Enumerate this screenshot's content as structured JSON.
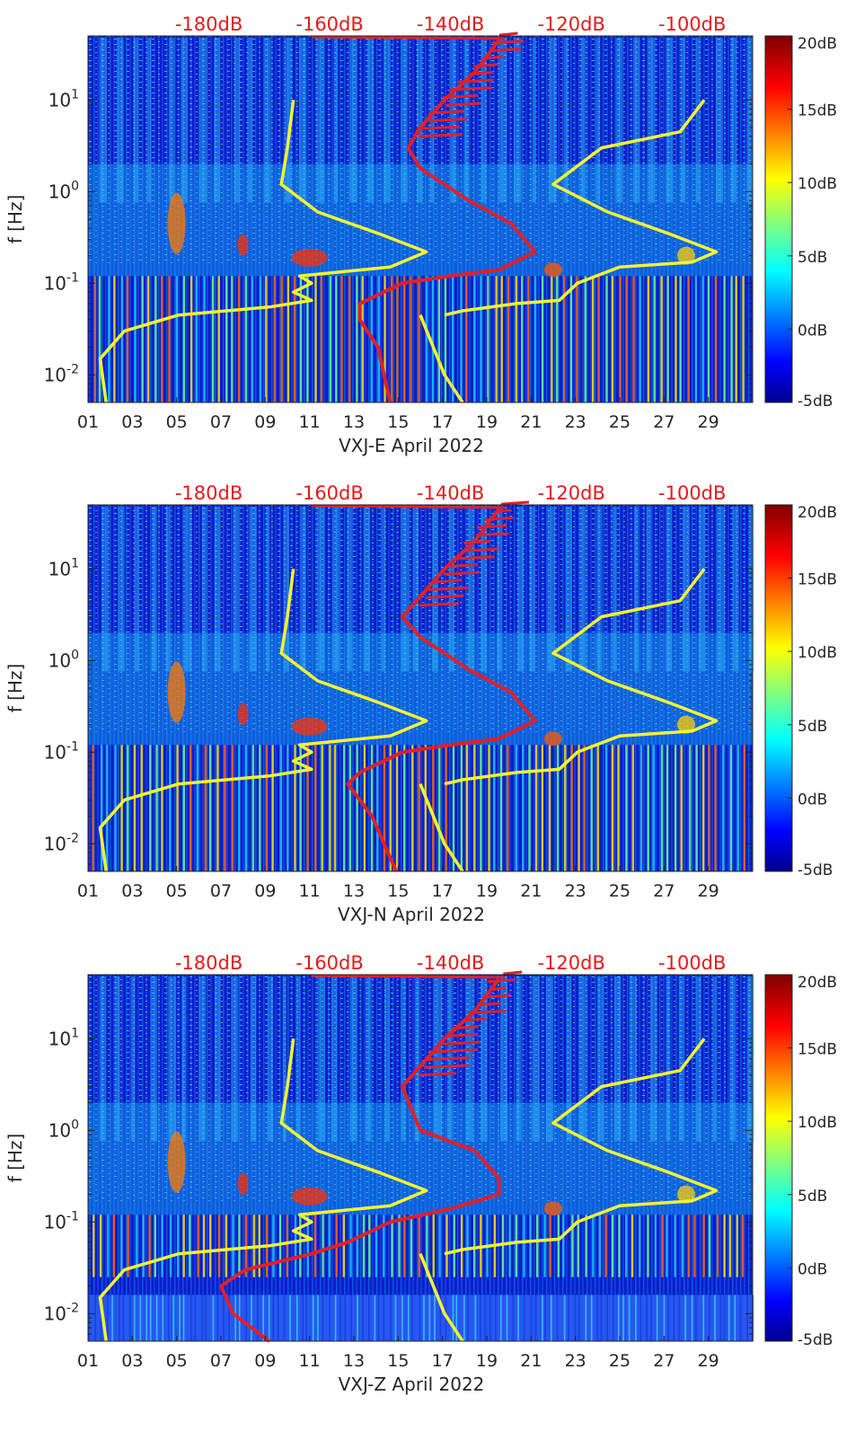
{
  "colorbar": {
    "tick_labels": [
      "20dB",
      "15dB",
      "10dB",
      "5dB",
      "0dB",
      "-5dB"
    ],
    "range": [
      -5,
      20
    ]
  },
  "top_scale": {
    "tick_labels": [
      "-180dB",
      "-160dB",
      "-140dB",
      "-120dB",
      "-100dB"
    ],
    "color": "#e41a1c"
  },
  "line_colors": {
    "model": "#f5f232",
    "psd": "#e0202a"
  },
  "chart_data": [
    {
      "type": "heatmap",
      "xlabel": "VXJ-E April 2022",
      "ylabel": "f [Hz]",
      "x_ticks": [
        "01",
        "03",
        "05",
        "07",
        "09",
        "11",
        "13",
        "15",
        "17",
        "19",
        "21",
        "23",
        "25",
        "27",
        "29"
      ],
      "y_ticks": [
        "10^1",
        "10^0",
        "10^-1",
        "10^-2"
      ],
      "ylim": [
        0.005,
        50
      ],
      "xlim": [
        1,
        31
      ],
      "yscale": "log",
      "top_axis": {
        "labels": [
          "-180dB",
          "-160dB",
          "-140dB",
          "-120dB",
          "-100dB"
        ],
        "range": [
          -200,
          -90
        ]
      },
      "series": [
        {
          "points": [
            [
              -197,
              0.005
            ],
            [
              -198,
              0.015
            ],
            [
              -194,
              0.03
            ],
            [
              -185,
              0.045
            ],
            [
              -170,
              0.055
            ],
            [
              -163,
              0.065
            ],
            [
              -166,
              0.08
            ],
            [
              -163,
              0.1
            ],
            [
              -165,
              0.12
            ],
            [
              -150,
              0.15
            ],
            [
              -144,
              0.22
            ],
            [
              -152,
              0.35
            ],
            [
              -162,
              0.6
            ],
            [
              -168,
              1.2
            ],
            [
              -167,
              3
            ],
            [
              -166,
              10
            ]
          ]
        },
        {
          "points": [
            [
              -145,
              0.045
            ],
            [
              -141,
              0.01
            ],
            [
              -138,
              0.005
            ]
          ]
        },
        {
          "points": [
            [
              -141,
              0.045
            ],
            [
              -138,
              0.05
            ],
            [
              -129,
              0.06
            ],
            [
              -122,
              0.065
            ],
            [
              -119,
              0.1
            ],
            [
              -112,
              0.15
            ],
            [
              -100,
              0.17
            ],
            [
              -96,
              0.22
            ],
            [
              -104,
              0.35
            ],
            [
              -114,
              0.6
            ],
            [
              -123,
              1.2
            ],
            [
              -115,
              3
            ],
            [
              -102,
              4.5
            ],
            [
              -98,
              10
            ]
          ]
        },
        {
          "points": [
            [
              -150,
              0.005
            ],
            [
              -152,
              0.02
            ],
            [
              -155,
              0.04
            ],
            [
              -155,
              0.06
            ],
            [
              -148,
              0.1
            ],
            [
              -140,
              0.12
            ],
            [
              -132,
              0.14
            ],
            [
              -126,
              0.22
            ],
            [
              -130,
              0.45
            ],
            [
              -137,
              0.8
            ],
            [
              -145,
              1.8
            ],
            [
              -147,
              3
            ],
            [
              -145,
              5
            ],
            [
              -141,
              10
            ],
            [
              -136,
              20
            ],
            [
              -132,
              45
            ]
          ]
        }
      ]
    },
    {
      "type": "heatmap",
      "xlabel": "VXJ-N April 2022",
      "ylabel": "f [Hz]",
      "x_ticks": [
        "01",
        "03",
        "05",
        "07",
        "09",
        "11",
        "13",
        "15",
        "17",
        "19",
        "21",
        "23",
        "25",
        "27",
        "29"
      ],
      "y_ticks": [
        "10^1",
        "10^0",
        "10^-1",
        "10^-2"
      ],
      "ylim": [
        0.005,
        50
      ],
      "xlim": [
        1,
        31
      ],
      "yscale": "log",
      "top_axis": {
        "labels": [
          "-180dB",
          "-160dB",
          "-140dB",
          "-120dB",
          "-100dB"
        ],
        "range": [
          -200,
          -90
        ]
      },
      "series": [
        {
          "points": [
            [
              -197,
              0.005
            ],
            [
              -198,
              0.015
            ],
            [
              -194,
              0.03
            ],
            [
              -185,
              0.045
            ],
            [
              -170,
              0.055
            ],
            [
              -163,
              0.065
            ],
            [
              -166,
              0.08
            ],
            [
              -163,
              0.1
            ],
            [
              -165,
              0.12
            ],
            [
              -150,
              0.15
            ],
            [
              -144,
              0.22
            ],
            [
              -152,
              0.35
            ],
            [
              -162,
              0.6
            ],
            [
              -168,
              1.2
            ],
            [
              -167,
              3
            ],
            [
              -166,
              10
            ]
          ]
        },
        {
          "points": [
            [
              -145,
              0.045
            ],
            [
              -141,
              0.01
            ],
            [
              -138,
              0.005
            ]
          ]
        },
        {
          "points": [
            [
              -141,
              0.045
            ],
            [
              -138,
              0.05
            ],
            [
              -129,
              0.06
            ],
            [
              -122,
              0.065
            ],
            [
              -119,
              0.1
            ],
            [
              -112,
              0.15
            ],
            [
              -100,
              0.17
            ],
            [
              -96,
              0.22
            ],
            [
              -104,
              0.35
            ],
            [
              -114,
              0.6
            ],
            [
              -123,
              1.2
            ],
            [
              -115,
              3
            ],
            [
              -102,
              4.5
            ],
            [
              -98,
              10
            ]
          ]
        },
        {
          "points": [
            [
              -149,
              0.005
            ],
            [
              -153,
              0.02
            ],
            [
              -157,
              0.045
            ],
            [
              -155,
              0.06
            ],
            [
              -148,
              0.1
            ],
            [
              -140,
              0.12
            ],
            [
              -132,
              0.14
            ],
            [
              -126,
              0.22
            ],
            [
              -130,
              0.45
            ],
            [
              -137,
              0.8
            ],
            [
              -145,
              1.8
            ],
            [
              -148,
              3
            ],
            [
              -145,
              5
            ],
            [
              -141,
              10
            ],
            [
              -136,
              20
            ],
            [
              -132,
              45
            ]
          ]
        }
      ]
    },
    {
      "type": "heatmap",
      "xlabel": "VXJ-Z April 2022",
      "ylabel": "f [Hz]",
      "x_ticks": [
        "01",
        "03",
        "05",
        "07",
        "09",
        "11",
        "13",
        "15",
        "17",
        "19",
        "21",
        "23",
        "25",
        "27",
        "29"
      ],
      "y_ticks": [
        "10^1",
        "10^0",
        "10^-1",
        "10^-2"
      ],
      "ylim": [
        0.005,
        50
      ],
      "xlim": [
        1,
        31
      ],
      "yscale": "log",
      "top_axis": {
        "labels": [
          "-180dB",
          "-160dB",
          "-140dB",
          "-120dB",
          "-100dB"
        ],
        "range": [
          -200,
          -90
        ]
      },
      "series": [
        {
          "points": [
            [
              -197,
              0.005
            ],
            [
              -198,
              0.015
            ],
            [
              -194,
              0.03
            ],
            [
              -185,
              0.045
            ],
            [
              -170,
              0.055
            ],
            [
              -163,
              0.065
            ],
            [
              -166,
              0.08
            ],
            [
              -163,
              0.1
            ],
            [
              -165,
              0.12
            ],
            [
              -150,
              0.15
            ],
            [
              -144,
              0.22
            ],
            [
              -152,
              0.35
            ],
            [
              -162,
              0.6
            ],
            [
              -168,
              1.2
            ],
            [
              -167,
              3
            ],
            [
              -166,
              10
            ]
          ]
        },
        {
          "points": [
            [
              -145,
              0.045
            ],
            [
              -141,
              0.01
            ],
            [
              -138,
              0.005
            ]
          ]
        },
        {
          "points": [
            [
              -141,
              0.045
            ],
            [
              -138,
              0.05
            ],
            [
              -129,
              0.06
            ],
            [
              -122,
              0.065
            ],
            [
              -119,
              0.1
            ],
            [
              -112,
              0.15
            ],
            [
              -100,
              0.17
            ],
            [
              -96,
              0.22
            ],
            [
              -104,
              0.35
            ],
            [
              -114,
              0.6
            ],
            [
              -123,
              1.2
            ],
            [
              -115,
              3
            ],
            [
              -102,
              4.5
            ],
            [
              -98,
              10
            ]
          ]
        },
        {
          "points": [
            [
              -170,
              0.005
            ],
            [
              -176,
              0.01
            ],
            [
              -178,
              0.02
            ],
            [
              -174,
              0.03
            ],
            [
              -163,
              0.045
            ],
            [
              -157,
              0.06
            ],
            [
              -150,
              0.1
            ],
            [
              -140,
              0.14
            ],
            [
              -132,
              0.2
            ],
            [
              -132,
              0.3
            ],
            [
              -136,
              0.6
            ],
            [
              -145,
              1
            ],
            [
              -148,
              3
            ],
            [
              -145,
              5
            ],
            [
              -141,
              10
            ],
            [
              -136,
              20
            ],
            [
              -132,
              45
            ]
          ]
        }
      ]
    }
  ]
}
